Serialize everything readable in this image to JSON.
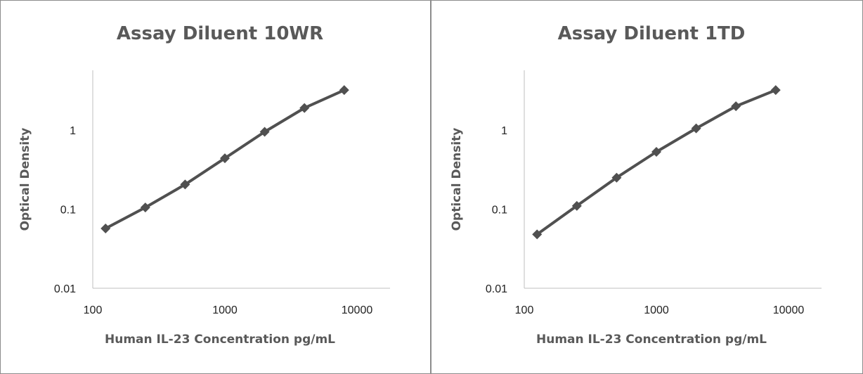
{
  "chart_data": [
    {
      "type": "line",
      "title": "Assay Diluent 10WR",
      "xlabel": "Human IL-23 Concentration pg/mL",
      "ylabel": "Optical Density",
      "xscale": "log",
      "yscale": "log",
      "xlim": [
        100,
        10000
      ],
      "ylim": [
        0.01,
        3
      ],
      "xticks": [
        "100",
        "1000",
        "10000"
      ],
      "yticks": [
        "0.01",
        "0.1",
        "1"
      ],
      "grid": false,
      "legend": "none",
      "line_color": "#505050",
      "x": [
        125,
        250,
        500,
        1000,
        2000,
        4000,
        8000
      ],
      "series": [
        {
          "values": [
            0.057,
            0.105,
            0.205,
            0.44,
            0.95,
            1.9,
            3.2
          ]
        }
      ]
    },
    {
      "type": "line",
      "title": "Assay Diluent 1TD",
      "xlabel": "Human IL-23 Concentration pg/mL",
      "ylabel": "Optical Density",
      "xscale": "log",
      "yscale": "log",
      "xlim": [
        100,
        10000
      ],
      "ylim": [
        0.01,
        3
      ],
      "xticks": [
        "100",
        "1000",
        "10000"
      ],
      "yticks": [
        "0.01",
        "0.1",
        "1"
      ],
      "grid": false,
      "legend": "none",
      "line_color": "#505050",
      "x": [
        125,
        250,
        500,
        1000,
        2000,
        4000,
        8000
      ],
      "series": [
        {
          "values": [
            0.048,
            0.11,
            0.25,
            0.53,
            1.05,
            2.0,
            3.2
          ]
        }
      ]
    }
  ]
}
